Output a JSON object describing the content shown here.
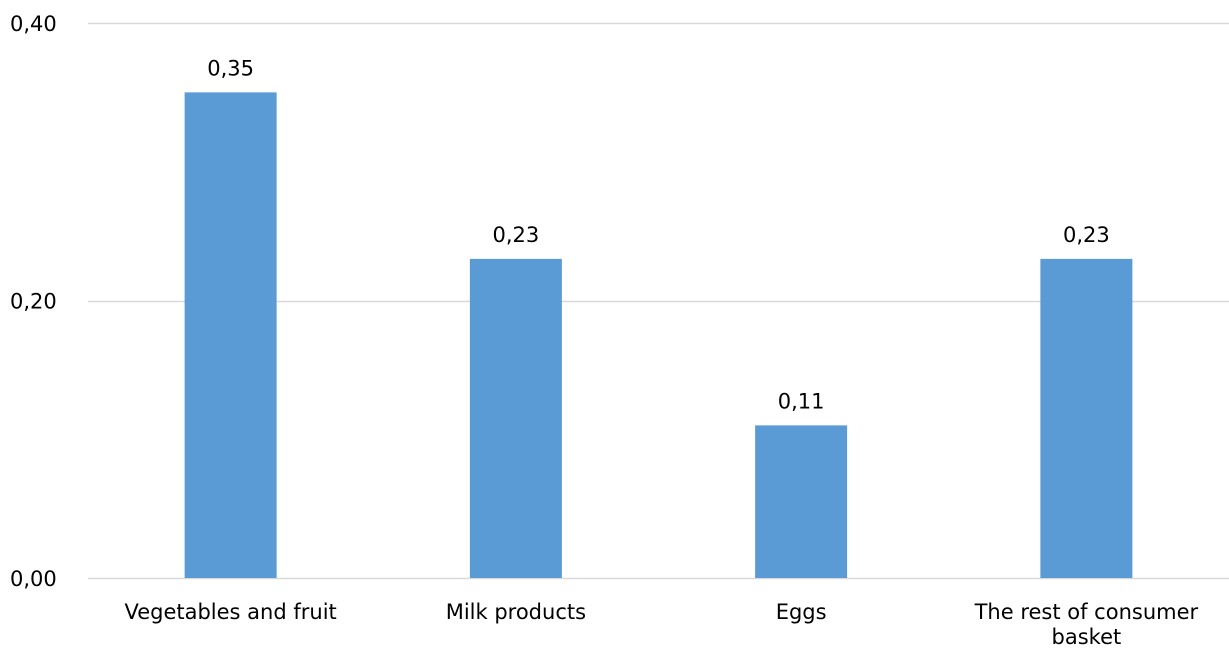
{
  "chart_data": {
    "type": "bar",
    "title": "",
    "xlabel": "",
    "ylabel": "",
    "categories": [
      "Vegetables and fruit",
      "Milk products",
      "Eggs",
      "The rest of consumer basket"
    ],
    "values": [
      0.35,
      0.23,
      0.11,
      0.23
    ],
    "data_labels": [
      "0,35",
      "0,23",
      "0,11",
      "0,23"
    ],
    "ylim": [
      0,
      0.4
    ],
    "yticks": [
      0,
      0.2,
      0.4
    ],
    "ytick_labels": [
      "0,00",
      "0,20",
      "0,40"
    ],
    "grid": true,
    "legend": "none",
    "colors": {
      "bar": "#5b9bd5",
      "grid": "#d9d9d9",
      "axis": "#d9d9d9"
    }
  }
}
